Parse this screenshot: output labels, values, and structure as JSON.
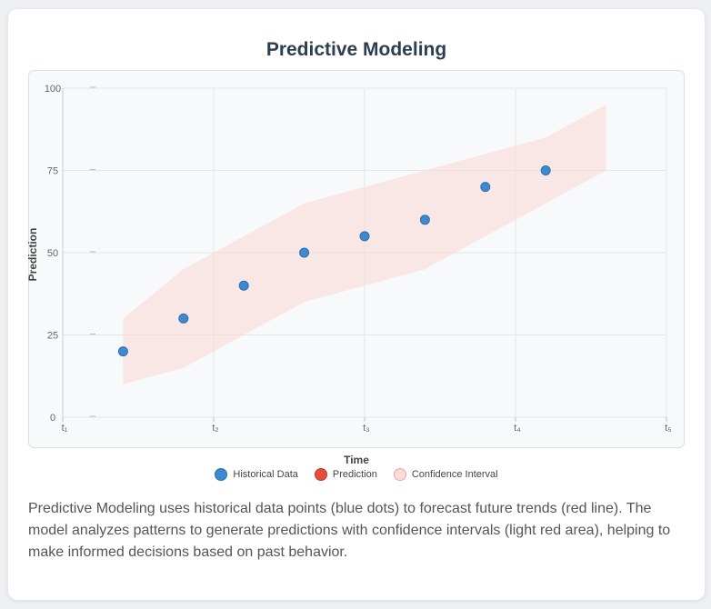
{
  "page": {
    "title": "Predictive Modeling",
    "description": "Predictive Modeling uses historical data points (blue dots) to forecast future trends (red line). The model analyzes patterns to generate predictions with confidence intervals (light red area), helping to make informed decisions based on past behavior."
  },
  "chart_data": {
    "type": "scatter",
    "title": "Predictive Modeling",
    "xlabel": "Time",
    "ylabel": "Prediction",
    "ylim": [
      0,
      100
    ],
    "xlim": [
      0,
      10
    ],
    "y_ticks": [
      0,
      25,
      50,
      75,
      100
    ],
    "x_ticks": [
      {
        "value": 0,
        "label": "t₁"
      },
      {
        "value": 2.5,
        "label": "t₂"
      },
      {
        "value": 5,
        "label": "t₃"
      },
      {
        "value": 7.5,
        "label": "t₄"
      },
      {
        "value": 10,
        "label": "t₅"
      }
    ],
    "grid": true,
    "legend": "bottom",
    "series": [
      {
        "name": "Historical Data",
        "color": "#3d8ad0",
        "x": [
          1,
          2,
          3,
          4,
          5,
          6,
          7,
          8
        ],
        "y": [
          20,
          30,
          40,
          50,
          55,
          60,
          70,
          75
        ]
      },
      {
        "name": "Prediction",
        "color": "#e74c3c",
        "x": [],
        "y": []
      },
      {
        "name": "Confidence Interval",
        "color": "#fadbd8",
        "x": [
          1,
          2,
          3,
          4,
          5,
          6,
          7,
          8,
          9
        ],
        "upper": [
          30,
          45,
          55,
          65,
          70,
          75,
          80,
          85,
          95
        ],
        "lower": [
          10,
          15,
          25,
          35,
          40,
          45,
          55,
          65,
          75
        ]
      }
    ]
  }
}
